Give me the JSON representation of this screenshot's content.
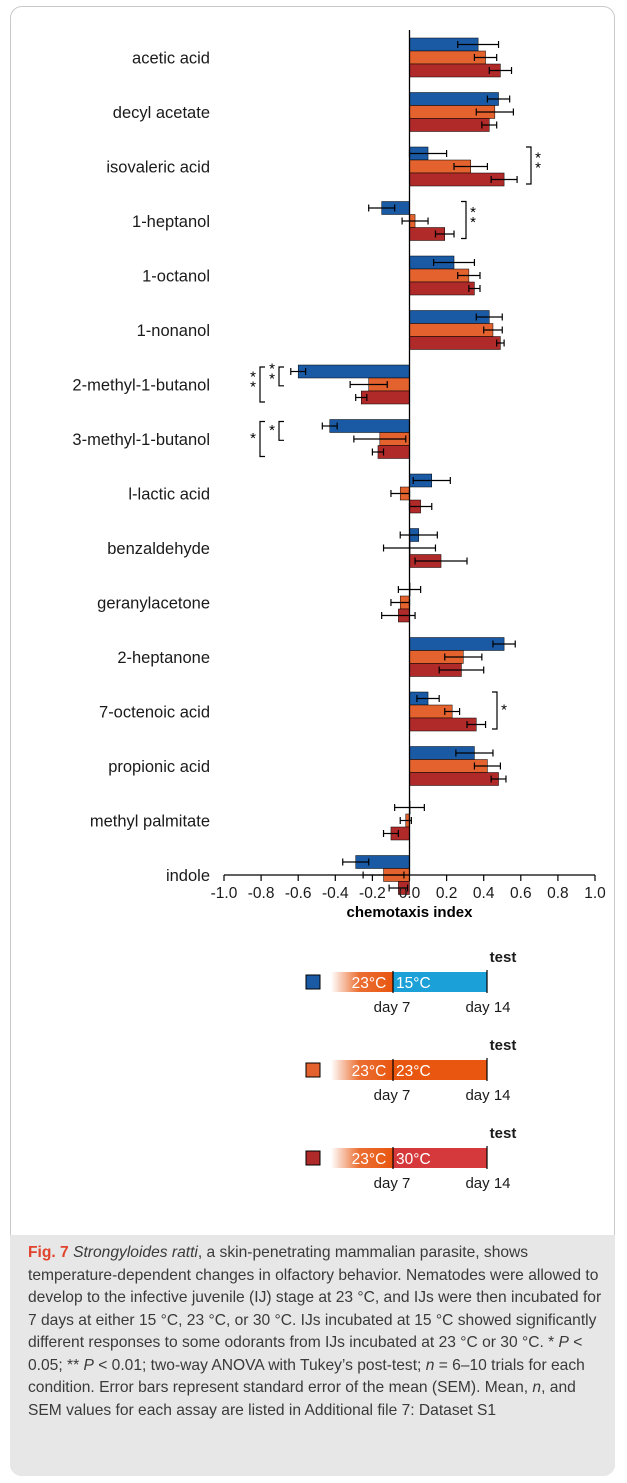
{
  "chart_data": {
    "type": "bar",
    "orientation": "horizontal",
    "xlabel": "chemotaxis index",
    "xlim": [
      -1.0,
      1.0
    ],
    "xticks": [
      "-1.0",
      "-0.8",
      "-0.6",
      "-0.4",
      "-0.2",
      "0.0",
      "0.2",
      "0.4",
      "0.6",
      "0.8",
      "1.0"
    ],
    "categories": [
      "acetic acid",
      "decyl acetate",
      "isovaleric acid",
      "1-heptanol",
      "1-octanol",
      "1-nonanol",
      "2-methyl-1-butanol",
      "3-methyl-1-butanol",
      "l-lactic acid",
      "benzaldehyde",
      "geranylacetone",
      "2-heptanone",
      "7-octenoic acid",
      "propionic acid",
      "methyl palmitate",
      "indole"
    ],
    "series": [
      {
        "color": "#1a5aa5",
        "values": [
          0.37,
          0.48,
          0.1,
          -0.15,
          0.24,
          0.43,
          -0.6,
          -0.43,
          0.12,
          0.05,
          0.0,
          0.51,
          0.1,
          0.35,
          0.0,
          -0.29
        ]
      },
      {
        "color": "#e3622e",
        "values": [
          0.41,
          0.46,
          0.33,
          0.03,
          0.32,
          0.45,
          -0.22,
          -0.16,
          -0.05,
          0.0,
          -0.05,
          0.29,
          0.23,
          0.42,
          -0.02,
          -0.14
        ]
      },
      {
        "color": "#b02a2a",
        "values": [
          0.49,
          0.43,
          0.51,
          0.19,
          0.35,
          0.49,
          -0.26,
          -0.17,
          0.06,
          0.17,
          -0.06,
          0.28,
          0.36,
          0.48,
          -0.1,
          -0.06
        ]
      }
    ],
    "errors": [
      [
        0.11,
        0.06,
        0.1,
        0.07,
        0.11,
        0.07,
        0.04,
        0.04,
        0.1,
        0.1,
        0.06,
        0.06,
        0.06,
        0.1,
        0.08,
        0.07
      ],
      [
        0.06,
        0.1,
        0.09,
        0.07,
        0.06,
        0.05,
        0.1,
        0.14,
        0.05,
        0.14,
        0.05,
        0.1,
        0.04,
        0.07,
        0.03,
        0.11
      ],
      [
        0.06,
        0.04,
        0.07,
        0.05,
        0.03,
        0.02,
        0.03,
        0.03,
        0.06,
        0.14,
        0.09,
        0.12,
        0.05,
        0.04,
        0.04,
        0.05
      ]
    ],
    "significance": [
      {
        "category": "isovaleric acid",
        "side": "right",
        "label": "**"
      },
      {
        "category": "1-heptanol",
        "side": "right",
        "label": "**"
      },
      {
        "category": "2-methyl-1-butanol",
        "side": "left",
        "outer": "**",
        "inner": "**"
      },
      {
        "category": "3-methyl-1-butanol",
        "side": "left",
        "outer": "*",
        "inner": "*"
      },
      {
        "category": "7-octenoic acid",
        "side": "right",
        "label": "*"
      }
    ]
  },
  "legend": [
    {
      "swatch": "#1a5aa5",
      "left_label": "23°C",
      "right_label": "15°C",
      "right_color": "#1ba1d8",
      "test_label": "test",
      "day_left": "day 7",
      "day_right": "day 14"
    },
    {
      "swatch": "#e3622e",
      "left_label": "23°C",
      "right_label": "23°C",
      "right_color": "#e8560f",
      "test_label": "test",
      "day_left": "day 7",
      "day_right": "day 14"
    },
    {
      "swatch": "#b02a2a",
      "left_label": "23°C",
      "right_label": "30°C",
      "right_color": "#d5393c",
      "test_label": "test",
      "day_left": "day 7",
      "day_right": "day 14"
    }
  ],
  "caption": {
    "fig_label": "Fig. 7",
    "species": "Strongyloides ratti",
    "title_rest": ", a skin-penetrating mammalian parasite, shows temperature-dependent changes in olfactory behavior.",
    "body_1": "Nematodes were allowed to develop to the infective juvenile (IJ) stage at 23 °C, and IJs were then incubated for 7 days at either 15 °C, 23 °C, or 30 °C. IJs incubated at 15 °C showed significantly different responses to some odorants from IJs incubated at 23 °C or 30 °C. * ",
    "p1": "P",
    "body_2": " < 0.05; ** ",
    "p2": "P",
    "body_3": " < 0.01; two-way ANOVA with Tukey’s post-test; ",
    "n1": "n",
    "body_4": " = 6–10 trials for each condition. Error bars represent standard error of the mean (SEM). Mean, ",
    "n2": "n",
    "body_5": ", and SEM values for each assay are listed in Additional file 7: Dataset S1"
  }
}
